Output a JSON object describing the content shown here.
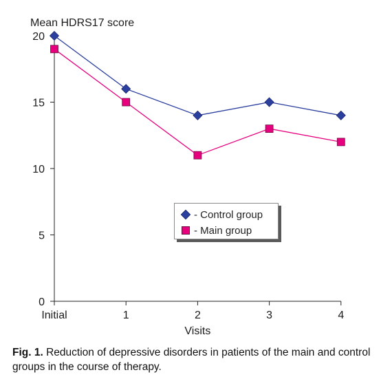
{
  "chart_data": {
    "type": "line",
    "ylabel": "Mean HDRS17 score",
    "xlabel": "Visits",
    "categories": [
      "Initial",
      "1",
      "2",
      "3",
      "4"
    ],
    "yticks": [
      0,
      5,
      10,
      15,
      20
    ],
    "ylim": [
      0,
      20
    ],
    "grid": false,
    "legend_placement": "center-right",
    "series": [
      {
        "name": "- Control group",
        "values": [
          20,
          16,
          14,
          15,
          14
        ],
        "color": "#2b3f9e",
        "marker": "diamond"
      },
      {
        "name": "- Main group",
        "values": [
          19,
          15,
          11,
          13,
          12
        ],
        "color": "#e6007e",
        "marker": "square"
      }
    ]
  },
  "caption": {
    "label": "Fig. 1.",
    "text": " Reduction of depressive disorders in patients of the main and control groups in the course of therapy."
  }
}
